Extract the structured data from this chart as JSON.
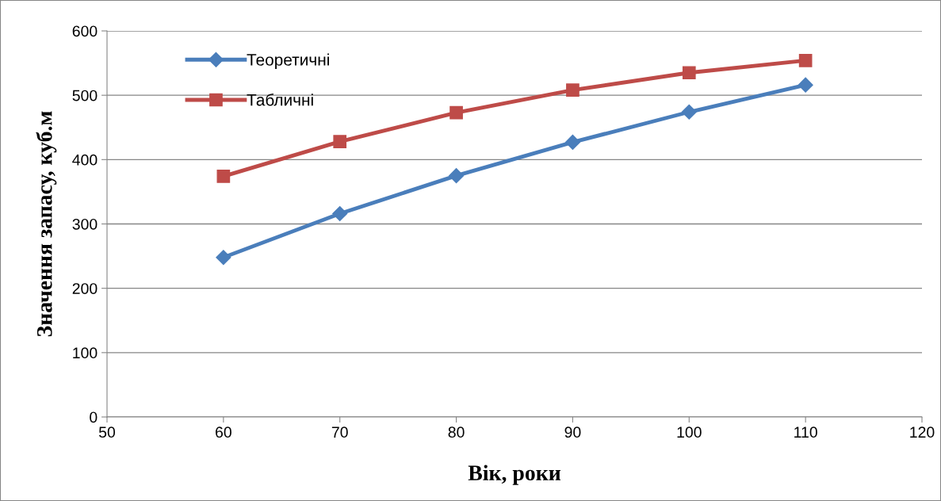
{
  "chart_data": {
    "type": "line",
    "xlabel": "Вік, роки",
    "ylabel": "Значення запасу, куб.м",
    "x": [
      60,
      70,
      80,
      90,
      100,
      110
    ],
    "series": [
      {
        "name": "Теоретичні",
        "color": "#4a7ebb",
        "marker": "diamond",
        "values": [
          248,
          316,
          375,
          427,
          474,
          516
        ]
      },
      {
        "name": "Табличні",
        "color": "#be4b48",
        "marker": "square",
        "values": [
          374,
          428,
          473,
          508,
          535,
          554
        ]
      }
    ],
    "xlim": [
      50,
      120
    ],
    "xticks": [
      50,
      60,
      70,
      80,
      90,
      100,
      110,
      120
    ],
    "ylim": [
      0,
      600
    ],
    "yticks": [
      0,
      100,
      200,
      300,
      400,
      500,
      600
    ],
    "grid": "y",
    "legend": "top left",
    "line_style": "solid"
  }
}
